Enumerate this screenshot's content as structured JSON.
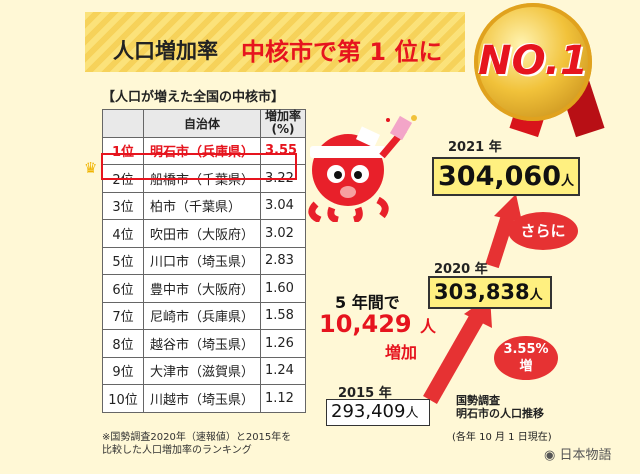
{
  "header": {
    "title_black": "人口増加率",
    "title_red": "中核市で第 1 位に",
    "medal_text": "NO.1"
  },
  "table": {
    "title": "【人口が増えた全国の中核市】",
    "headers": [
      "",
      "自治体",
      "増加率\n(%)"
    ],
    "rows": [
      [
        "1位",
        "明石市（兵庫県）",
        "3.55"
      ],
      [
        "2位",
        "船橋市（千葉県）",
        "3.22"
      ],
      [
        "3位",
        "柏市（千葉県）",
        "3.04"
      ],
      [
        "4位",
        "吹田市（大阪府）",
        "3.02"
      ],
      [
        "5位",
        "川口市（埼玉県）",
        "2.83"
      ],
      [
        "6位",
        "豊中市（大阪府）",
        "1.60"
      ],
      [
        "7位",
        "尼崎市（兵庫県）",
        "1.58"
      ],
      [
        "8位",
        "越谷市（埼玉県）",
        "1.26"
      ],
      [
        "9位",
        "大津市（滋賀県）",
        "1.24"
      ],
      [
        "10位",
        "川越市（埼玉県）",
        "1.12"
      ]
    ],
    "footnote": "※国勢調査2020年（速報値）と2015年を\n比較した人口増加率のランキング"
  },
  "population": {
    "y2021_label": "2021 年",
    "y2021_value": "304,060",
    "y2020_label": "2020 年",
    "y2020_value": "303,838",
    "y2015_label": "2015 年",
    "y2015_value": "293,409",
    "unit": "人"
  },
  "growth": {
    "line1": "5 年間で",
    "amount": "10,429",
    "unit": "人",
    "label": "増加",
    "furthermore": "さらに",
    "pct": "3.55%",
    "pct_label": "増"
  },
  "source": {
    "line1": "国勢調査",
    "line2": "明石市の人口推移",
    "note": "(各年 10 月 1 日現在)"
  },
  "watermark": "日本物語",
  "colors": {
    "accent_red": "#e6141e",
    "highlight_yellow": "#fff080",
    "background": "#fff8d6"
  }
}
